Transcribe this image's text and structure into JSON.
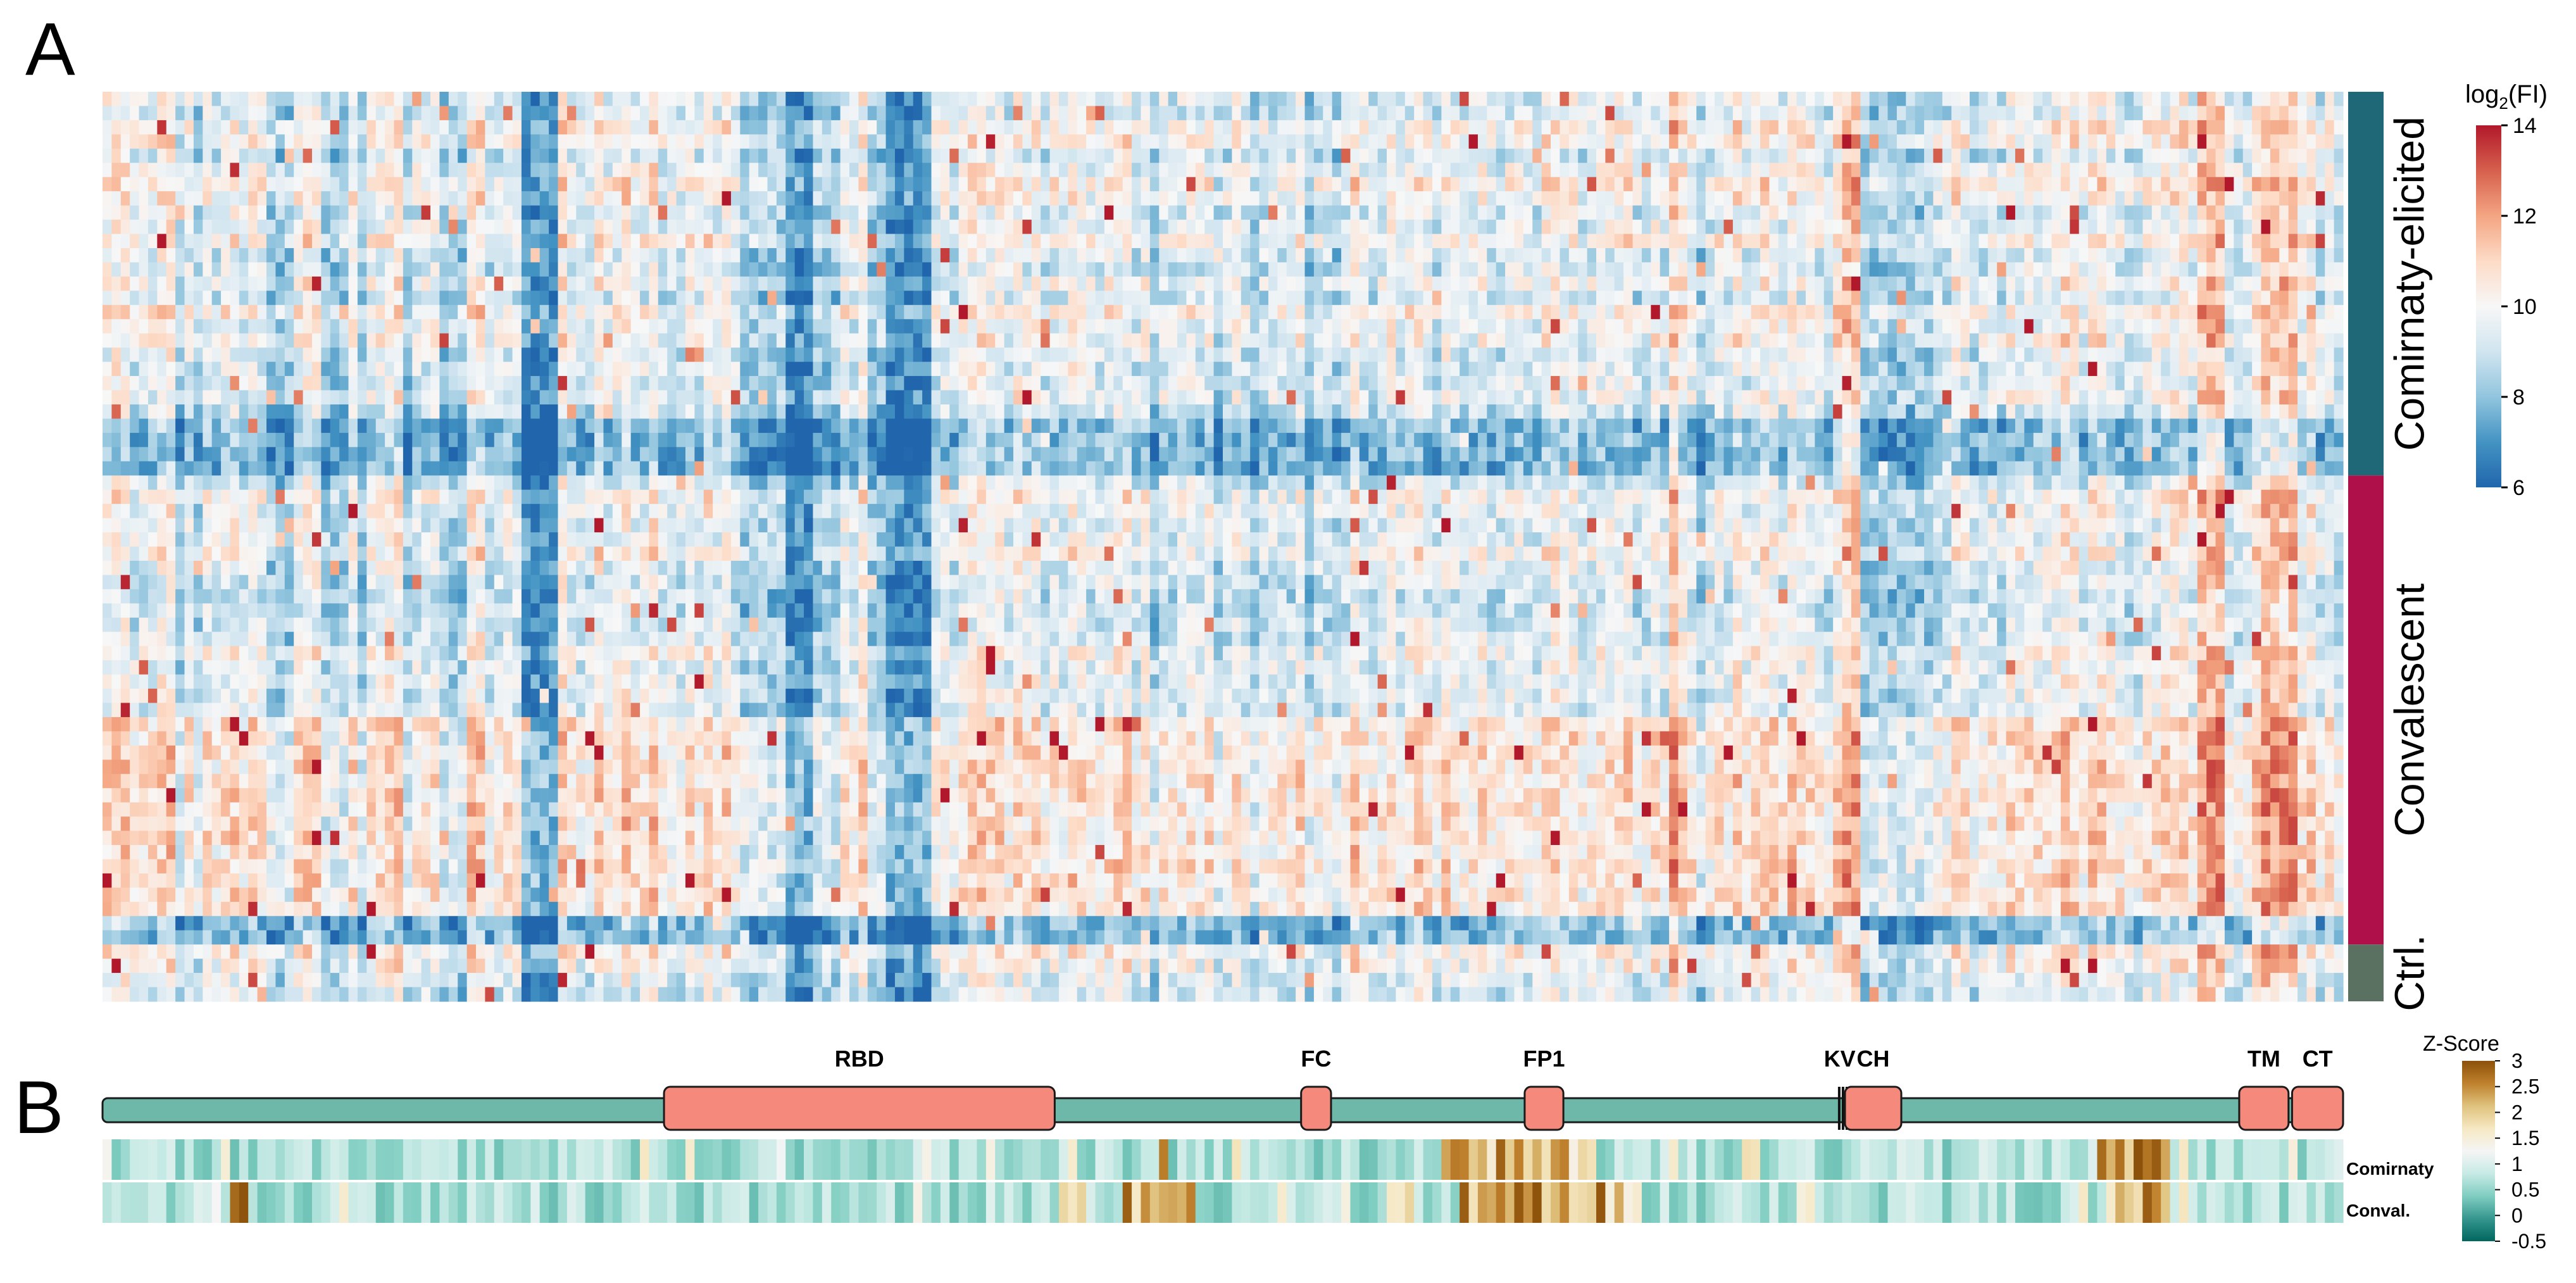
{
  "panels": {
    "a_letter": "A",
    "b_letter": "B"
  },
  "chart_data": [
    {
      "type": "heatmap",
      "panel": "A",
      "description_value_name": "log2(FI)",
      "colorbar": {
        "title_prefix": "log",
        "title_subscript": "2",
        "title_suffix": "(FI)",
        "ticks": [
          "6",
          "8",
          "10",
          "12",
          "14"
        ],
        "range": [
          6,
          14
        ],
        "colors": [
          "#2166ac",
          "#4393c3",
          "#92c5de",
          "#d1e5f0",
          "#f7f7f7",
          "#fddbc7",
          "#f4a582",
          "#d6604d",
          "#b2182b"
        ]
      },
      "n_columns": 246,
      "groups": [
        {
          "label": "Comirnaty-elicited",
          "n_rows": 27,
          "color": "#1f6878"
        },
        {
          "label": "Convalescent",
          "n_rows": 33,
          "color": "#b0104a"
        },
        {
          "label": "Ctrl.",
          "n_rows": 4,
          "color": "#5a7060"
        }
      ],
      "strong_low_columns": [
        46,
        47,
        48,
        49,
        75,
        76,
        77,
        86,
        87,
        88,
        89,
        90
      ],
      "moderate_low_columns": [
        8,
        10,
        18,
        19,
        20,
        24,
        25,
        26,
        28,
        33,
        37,
        38,
        39,
        70,
        71,
        72,
        73,
        74,
        78,
        79,
        80,
        84,
        85,
        115,
        122,
        126,
        132,
        135,
        175,
        193,
        194,
        195,
        196,
        197,
        198,
        199,
        200
      ],
      "high_columns": [
        172,
        191,
        192,
        230,
        231,
        232,
        237,
        238,
        239,
        240
      ],
      "low_rows": [
        23,
        24,
        25,
        26,
        58,
        59
      ],
      "high_rows": [
        44,
        45,
        46,
        47,
        48,
        49,
        50,
        51,
        52,
        53,
        54,
        55,
        56,
        57
      ]
    },
    {
      "type": "heatmap",
      "panel": "B",
      "description_value_name": "Z-Score",
      "colorbar": {
        "title": "Z-Score",
        "ticks": [
          "3",
          "2.5",
          "2",
          "1.5",
          "1",
          "0.5",
          "0",
          "-0.5"
        ],
        "range": [
          -0.5,
          3
        ],
        "colors": [
          "#01665e",
          "#35978f",
          "#80cdc1",
          "#c7eae5",
          "#f5f5f5",
          "#f6e8c3",
          "#dfc27d",
          "#bf812d",
          "#8c510a"
        ]
      },
      "protein_length": 1273,
      "domains": [
        {
          "label": "RBD",
          "start": 319,
          "end": 541
        },
        {
          "label": "FC",
          "start": 681,
          "end": 698
        },
        {
          "label": "FP1",
          "start": 808,
          "end": 830
        },
        {
          "label": "KV",
          "start": 986,
          "end": 988
        },
        {
          "label": "CH",
          "start": 990,
          "end": 1022
        },
        {
          "label": "TM",
          "start": 1214,
          "end": 1242
        },
        {
          "label": "CT",
          "start": 1244,
          "end": 1273
        }
      ],
      "rows": [
        {
          "label": "Comirnaty",
          "hot_columns": [
            116,
            147,
            148,
            149,
            150,
            151,
            152,
            153,
            154,
            155,
            156,
            157,
            158,
            159,
            160,
            161,
            162,
            163,
            219,
            220,
            221,
            222,
            223,
            224,
            225,
            226,
            228
          ]
        },
        {
          "label": "Conval.",
          "hot_columns": [
            14,
            15,
            105,
            106,
            107,
            112,
            113,
            114,
            115,
            116,
            117,
            118,
            119,
            141,
            142,
            143,
            149,
            150,
            151,
            152,
            153,
            154,
            155,
            156,
            157,
            158,
            159,
            160,
            161,
            162,
            163,
            164,
            165,
            166,
            167,
            168,
            220,
            221,
            222,
            223,
            224,
            225,
            226
          ]
        }
      ]
    }
  ]
}
